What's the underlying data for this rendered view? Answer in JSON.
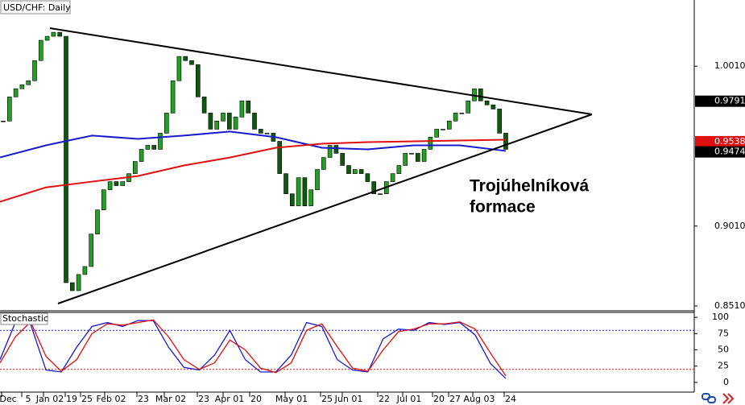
{
  "chart_data": [
    {
      "type": "candlestick",
      "title": "USD/CHF: Daily",
      "close": [
        0.9667,
        0.9818,
        0.9869,
        0.9894,
        0.9919,
        1.0045,
        1.0172,
        1.0197,
        1.0222,
        1.0197,
        0.8656,
        0.8606,
        0.8707,
        0.8757,
        0.896,
        0.9111,
        0.9237,
        0.9288,
        0.9263,
        0.9288,
        0.9338,
        0.9414,
        0.949,
        0.9515,
        0.949,
        0.9591,
        0.9717,
        0.9919,
        1.0071,
        1.0045,
        1.002,
        0.9818,
        0.9717,
        0.9616,
        0.9667,
        0.9717,
        0.9616,
        0.9692,
        0.9793,
        0.9717,
        0.9616,
        0.9591,
        0.9591,
        0.954,
        0.9338,
        0.9212,
        0.9136,
        0.9313,
        0.9136,
        0.9237,
        0.9364,
        0.9439,
        0.9515,
        0.9465,
        0.9389,
        0.9338,
        0.9364,
        0.9338,
        0.9288,
        0.9212,
        0.9212,
        0.9288,
        0.9338,
        0.9389,
        0.9465,
        0.9465,
        0.9414,
        0.949,
        0.9566,
        0.9616,
        0.9616,
        0.9667,
        0.9717,
        0.9717,
        0.9793,
        0.9869,
        0.9793,
        0.9768,
        0.9742,
        0.9591,
        0.949
      ],
      "bull_color": "#22a022",
      "bear_color": "#0d5a0d",
      "series": [
        {
          "color": "#1a1acc",
          "values": [
            0.9439,
            0.9515,
            0.9576,
            0.9555,
            0.9576,
            0.9601,
            0.9566,
            0.95,
            0.949,
            0.9515,
            0.9515,
            0.948
          ]
        },
        {
          "color": "#e01010",
          "values": [
            0.9162,
            0.9252,
            0.9288,
            0.9323,
            0.9389,
            0.9439,
            0.95,
            0.9525,
            0.9535,
            0.954,
            0.9545,
            0.955
          ]
        }
      ],
      "ylim": [
        0.848,
        1.0424
      ],
      "yticks": [
        {
          "value": 1.001,
          "label": "1.0010"
        },
        {
          "value": 0.901,
          "label": "0.9010"
        },
        {
          "value": 0.851,
          "label": "0.8510"
        }
      ],
      "price_tags": [
        {
          "value": 0.9791,
          "color": "#000000"
        },
        {
          "value": 0.9538,
          "color": "#e01010"
        },
        {
          "value": 0.9474,
          "color": "#000000"
        }
      ],
      "annotation": [
        "Trojúhelníková",
        "formace"
      ],
      "x_labels": [
        "Dec",
        "5",
        "Jan 02",
        "19",
        "25",
        "Feb 02",
        "23",
        "Mar 02",
        "23",
        "Apr 01",
        "20",
        "May 01",
        "25",
        "Jun 01",
        "22",
        "Jul 01",
        "20",
        "27",
        "Aug 03",
        "24"
      ]
    },
    {
      "type": "line",
      "title": "Stochastic",
      "series": [
        {
          "color": "#1a1acc",
          "values": [
            35,
            92,
            89,
            19,
            16,
            54,
            86,
            92,
            86,
            95,
            95,
            54,
            23,
            19,
            42,
            80,
            35,
            16,
            16,
            42,
            92,
            86,
            35,
            19,
            16,
            67,
            82,
            80,
            92,
            89,
            92,
            73,
            29,
            6
          ]
        },
        {
          "color": "#e01010",
          "values": [
            30,
            70,
            93,
            40,
            17,
            35,
            75,
            90,
            88,
            92,
            96,
            70,
            35,
            20,
            30,
            65,
            50,
            22,
            15,
            30,
            80,
            90,
            55,
            22,
            17,
            50,
            78,
            82,
            90,
            90,
            93,
            82,
            45,
            10
          ]
        }
      ],
      "ylim": [
        -15,
        107.6
      ],
      "yticks": [
        100,
        75,
        50,
        25,
        0
      ],
      "levels": [
        {
          "value": 80,
          "color": "#1a1acc"
        },
        {
          "value": 20,
          "color": "#e01010"
        }
      ]
    }
  ]
}
